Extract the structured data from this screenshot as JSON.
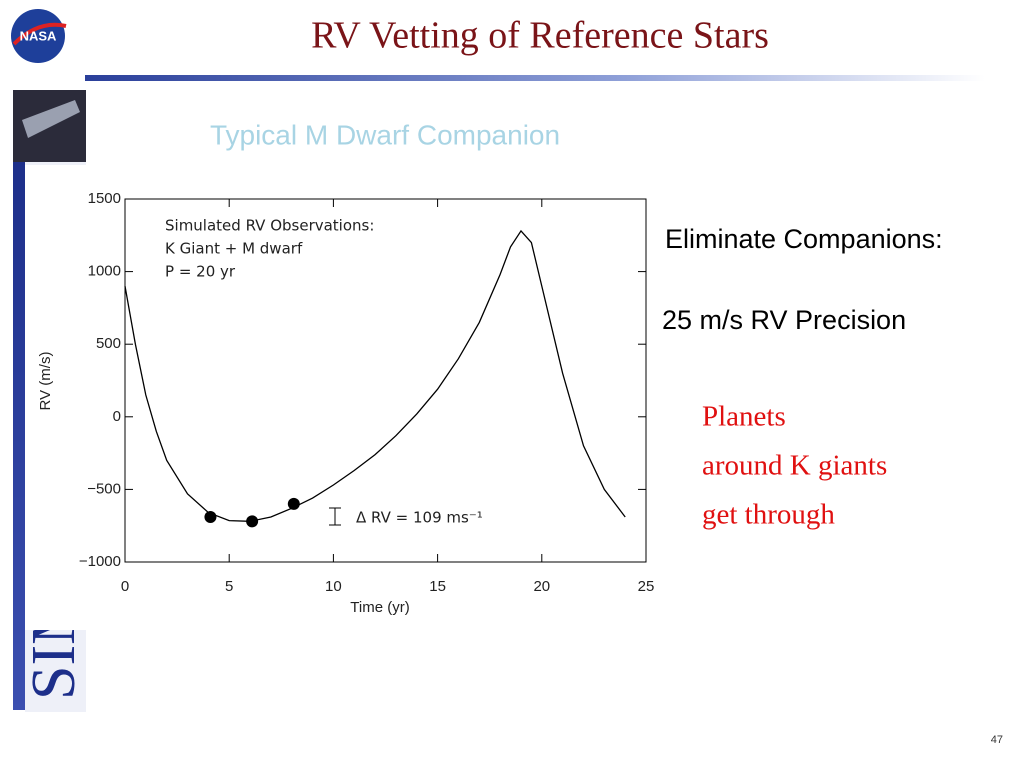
{
  "slide": {
    "title": "RV Vetting of Reference Stars",
    "subtitle": "Typical  M Dwarf Companion",
    "logo": "NASA",
    "side_logo": "SIM",
    "bullets": [
      "Eliminate Companions:",
      "25 m/s RV Precision"
    ],
    "highlight": [
      "Planets",
      "around K giants",
      "get through"
    ],
    "page_number": "47"
  },
  "chart_data": {
    "type": "line",
    "annotations": [
      "Simulated RV Observations:",
      "K Giant + M dwarf",
      "P = 20 yr",
      "Δ RV = 109 ms⁻¹"
    ],
    "xlabel": "Time (yr)",
    "ylabel": "RV (m/s)",
    "x": [
      0,
      0.5,
      1,
      1.5,
      2,
      3,
      4,
      5,
      6,
      7,
      8,
      9,
      10,
      11,
      12,
      13,
      14,
      15,
      16,
      17,
      18,
      18.5,
      19,
      19.5,
      20,
      21,
      22,
      23,
      24
    ],
    "values": [
      900,
      500,
      150,
      -100,
      -300,
      -530,
      -660,
      -715,
      -720,
      -690,
      -630,
      -560,
      -470,
      -370,
      -260,
      -130,
      20,
      190,
      400,
      650,
      980,
      1170,
      1280,
      1200,
      900,
      300,
      -200,
      -500,
      -690
    ],
    "color": "#000000",
    "points": {
      "x": [
        4.1,
        6.1,
        8.1
      ],
      "values": [
        -690,
        -720,
        -600
      ]
    },
    "xlim": [
      0,
      25
    ],
    "xticks": [
      0,
      5,
      10,
      15,
      20,
      25
    ],
    "ylim": [
      -1000,
      1500
    ],
    "yticks": [
      {
        "value": -1000,
        "label": "−1000"
      },
      {
        "value": -500,
        "label": "−500"
      },
      0,
      500,
      1000,
      1500
    ]
  }
}
